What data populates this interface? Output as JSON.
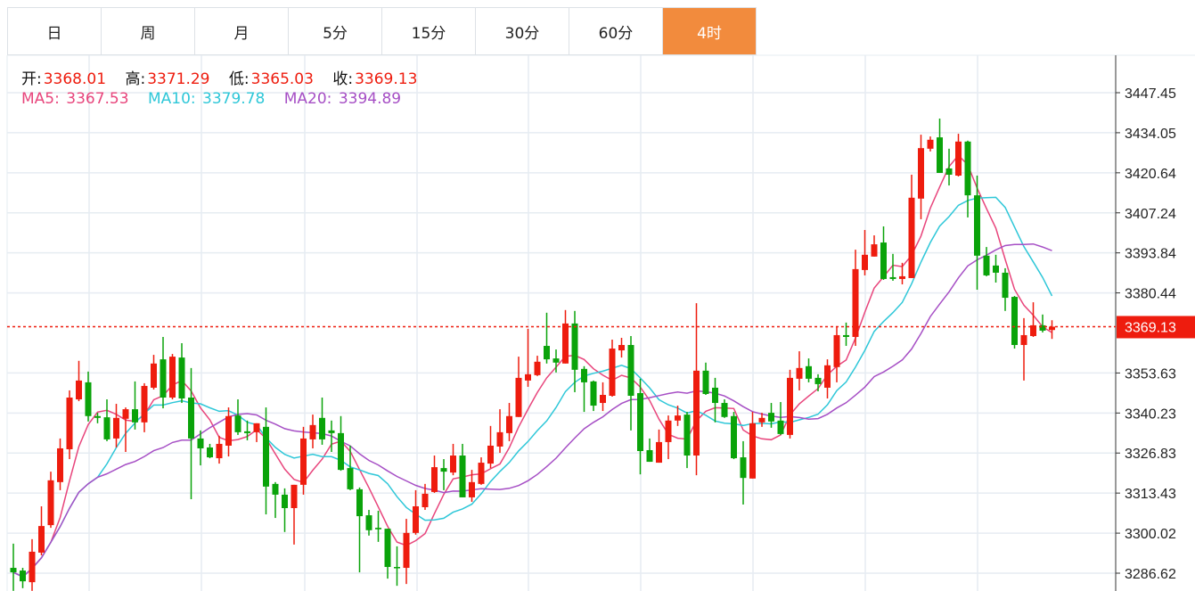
{
  "tabs": [
    {
      "label": "日",
      "active": false
    },
    {
      "label": "周",
      "active": false
    },
    {
      "label": "月",
      "active": false
    },
    {
      "label": "5分",
      "active": false
    },
    {
      "label": "15分",
      "active": false
    },
    {
      "label": "30分",
      "active": false
    },
    {
      "label": "60分",
      "active": false
    },
    {
      "label": "4时",
      "active": true
    }
  ],
  "ohlc_info": {
    "open_label": "开:",
    "open": "3368.01",
    "high_label": "高:",
    "high": "3371.29",
    "low_label": "低:",
    "low": "3365.03",
    "close_label": "收:",
    "close": "3369.13"
  },
  "ma_info": {
    "ma5_label": "MA5:",
    "ma5": "3367.53",
    "ma10_label": "MA10:",
    "ma10": "3379.78",
    "ma20_label": "MA20:",
    "ma20": "3394.89"
  },
  "colors": {
    "up": "#ee1c0e",
    "down": "#0aa30a",
    "ma5": "#e8457c",
    "ma10": "#2ec7d8",
    "ma20": "#a64fc5",
    "active_tab": "#f28b3d",
    "grid": "#e6ecf2"
  },
  "chart_data": {
    "type": "candlestick",
    "ylim": [
      3282.6,
      3478.5
    ],
    "yticks": [
      "3447.45",
      "3434.05",
      "3420.64",
      "3407.24",
      "3393.84",
      "3380.44",
      "3353.63",
      "3340.23",
      "3326.83",
      "3313.43",
      "3300.02",
      "3286.62"
    ],
    "current_price": "3369.13",
    "grid": true,
    "moving_averages": [
      5,
      10,
      20
    ],
    "ohlc": [
      [
        3288.4,
        3296.5,
        3280.7,
        3286.9
      ],
      [
        3287.5,
        3288.4,
        3281.6,
        3283.9
      ],
      [
        3283.6,
        3298.0,
        3280.7,
        3293.8
      ],
      [
        3293.5,
        3309.0,
        3292.6,
        3302.4
      ],
      [
        3302.7,
        3320.6,
        3301.8,
        3317.7
      ],
      [
        3317.1,
        3331.7,
        3314.4,
        3328.4
      ],
      [
        3328.1,
        3347.8,
        3324.8,
        3345.4
      ],
      [
        3344.8,
        3357.7,
        3344.2,
        3351.1
      ],
      [
        3350.5,
        3354.1,
        3337.4,
        3339.2
      ],
      [
        3339.2,
        3340.3,
        3336.8,
        3338.6
      ],
      [
        3338.8,
        3344.8,
        3330.8,
        3331.4
      ],
      [
        3331.7,
        3343.3,
        3328.7,
        3338.6
      ],
      [
        3338.3,
        3342.1,
        3327.2,
        3341.5
      ],
      [
        3341.5,
        3350.8,
        3334.7,
        3337.1
      ],
      [
        3337.1,
        3350.2,
        3333.8,
        3349.3
      ],
      [
        3348.7,
        3359.7,
        3348.1,
        3356.8
      ],
      [
        3358.2,
        3365.7,
        3341.8,
        3345.4
      ],
      [
        3345.4,
        3360.0,
        3344.8,
        3359.1
      ],
      [
        3358.8,
        3363.6,
        3343.6,
        3345.1
      ],
      [
        3345.4,
        3355.3,
        3311.4,
        3331.7
      ],
      [
        3331.7,
        3334.4,
        3322.7,
        3328.4
      ],
      [
        3328.7,
        3329.9,
        3325.1,
        3325.4
      ],
      [
        3325.1,
        3332.6,
        3323.3,
        3329.9
      ],
      [
        3329.3,
        3342.1,
        3325.7,
        3339.2
      ],
      [
        3339.4,
        3344.8,
        3332.9,
        3333.8
      ],
      [
        3334.1,
        3337.7,
        3331.1,
        3333.5
      ],
      [
        3333.8,
        3336.8,
        3330.5,
        3336.8
      ],
      [
        3335.6,
        3342.1,
        3306.3,
        3315.6
      ],
      [
        3316.5,
        3317.1,
        3305.1,
        3312.9
      ],
      [
        3312.9,
        3315.0,
        3300.4,
        3308.4
      ],
      [
        3308.4,
        3316.2,
        3296.2,
        3316.2
      ],
      [
        3316.2,
        3335.6,
        3312.9,
        3331.7
      ],
      [
        3331.4,
        3339.7,
        3328.4,
        3336.2
      ],
      [
        3338.6,
        3345.4,
        3329.6,
        3331.4
      ],
      [
        3334.4,
        3337.7,
        3327.2,
        3333.5
      ],
      [
        3333.5,
        3339.2,
        3320.9,
        3321.2
      ],
      [
        3321.8,
        3329.3,
        3314.4,
        3314.7
      ],
      [
        3314.7,
        3315.3,
        3286.9,
        3305.7
      ],
      [
        3306.0,
        3307.8,
        3299.2,
        3301.0
      ],
      [
        3301.8,
        3307.5,
        3297.1,
        3301.3
      ],
      [
        3301.5,
        3301.5,
        3284.8,
        3288.7
      ],
      [
        3288.7,
        3295.6,
        3282.4,
        3288.4
      ],
      [
        3288.4,
        3304.8,
        3283.0,
        3300.1
      ],
      [
        3300.1,
        3314.4,
        3299.5,
        3309.0
      ],
      [
        3308.7,
        3316.5,
        3307.8,
        3313.2
      ],
      [
        3313.8,
        3326.0,
        3313.5,
        3322.1
      ],
      [
        3321.8,
        3324.8,
        3314.4,
        3320.6
      ],
      [
        3320.3,
        3329.9,
        3319.4,
        3326.0
      ],
      [
        3326.0,
        3329.9,
        3312.0,
        3312.0
      ],
      [
        3312.0,
        3321.2,
        3310.5,
        3317.1
      ],
      [
        3316.5,
        3325.4,
        3316.2,
        3323.6
      ],
      [
        3323.3,
        3335.9,
        3321.8,
        3329.3
      ],
      [
        3329.0,
        3341.5,
        3326.9,
        3333.8
      ],
      [
        3333.5,
        3343.6,
        3330.8,
        3339.2
      ],
      [
        3338.9,
        3359.1,
        3338.9,
        3352.0
      ],
      [
        3351.1,
        3368.4,
        3349.0,
        3353.2
      ],
      [
        3352.9,
        3359.4,
        3352.6,
        3357.4
      ],
      [
        3362.7,
        3373.8,
        3356.8,
        3358.2
      ],
      [
        3358.5,
        3361.5,
        3353.8,
        3357.1
      ],
      [
        3356.8,
        3374.7,
        3356.8,
        3370.2
      ],
      [
        3370.2,
        3374.4,
        3347.2,
        3354.7
      ],
      [
        3355.0,
        3355.9,
        3340.6,
        3350.5
      ],
      [
        3350.8,
        3351.1,
        3340.9,
        3342.7
      ],
      [
        3343.6,
        3350.5,
        3340.9,
        3346.3
      ],
      [
        3346.0,
        3364.8,
        3345.7,
        3361.8
      ],
      [
        3361.2,
        3365.4,
        3358.8,
        3363.0
      ],
      [
        3363.0,
        3366.0,
        3334.4,
        3346.0
      ],
      [
        3346.9,
        3351.7,
        3319.7,
        3327.5
      ],
      [
        3327.8,
        3331.7,
        3323.9,
        3323.9
      ],
      [
        3323.6,
        3334.7,
        3323.6,
        3330.5
      ],
      [
        3330.5,
        3339.4,
        3324.8,
        3337.7
      ],
      [
        3337.7,
        3342.7,
        3335.9,
        3339.4
      ],
      [
        3339.7,
        3340.6,
        3321.8,
        3326.0
      ],
      [
        3326.0,
        3377.0,
        3319.4,
        3354.4
      ],
      [
        3354.4,
        3357.1,
        3346.3,
        3346.6
      ],
      [
        3348.7,
        3352.0,
        3337.1,
        3343.6
      ],
      [
        3343.6,
        3344.8,
        3338.6,
        3338.9
      ],
      [
        3339.2,
        3340.6,
        3324.8,
        3325.1
      ],
      [
        3325.4,
        3330.8,
        3309.6,
        3318.5
      ],
      [
        3318.3,
        3340.6,
        3318.3,
        3336.8
      ],
      [
        3337.1,
        3340.3,
        3335.6,
        3338.6
      ],
      [
        3340.3,
        3343.6,
        3335.3,
        3337.4
      ],
      [
        3337.7,
        3343.9,
        3332.9,
        3333.2
      ],
      [
        3332.9,
        3354.7,
        3331.7,
        3352.0
      ],
      [
        3351.7,
        3360.9,
        3347.8,
        3355.3
      ],
      [
        3355.9,
        3358.5,
        3350.5,
        3351.7
      ],
      [
        3352.0,
        3353.2,
        3347.5,
        3349.9
      ],
      [
        3348.7,
        3358.2,
        3345.1,
        3356.2
      ],
      [
        3355.6,
        3369.3,
        3350.5,
        3366.3
      ],
      [
        3366.3,
        3370.5,
        3362.7,
        3365.7
      ],
      [
        3365.7,
        3394.9,
        3362.7,
        3388.4
      ],
      [
        3388.1,
        3401.5,
        3386.3,
        3393.2
      ],
      [
        3392.6,
        3399.7,
        3392.6,
        3396.7
      ],
      [
        3397.3,
        3402.7,
        3384.8,
        3385.1
      ],
      [
        3385.7,
        3393.5,
        3384.5,
        3385.1
      ],
      [
        3385.1,
        3390.5,
        3383.3,
        3386.0
      ],
      [
        3385.4,
        3420.0,
        3385.4,
        3412.3
      ],
      [
        3412.0,
        3433.4,
        3405.1,
        3428.9
      ],
      [
        3428.7,
        3432.8,
        3427.8,
        3431.7
      ],
      [
        3432.5,
        3438.8,
        3420.6,
        3420.6
      ],
      [
        3422.1,
        3428.7,
        3416.4,
        3420.0
      ],
      [
        3419.7,
        3433.7,
        3419.4,
        3431.1
      ],
      [
        3431.1,
        3431.4,
        3405.7,
        3413.1
      ],
      [
        3413.1,
        3419.7,
        3381.5,
        3392.9
      ],
      [
        3392.9,
        3395.8,
        3386.0,
        3386.3
      ],
      [
        3389.6,
        3393.2,
        3383.9,
        3387.2
      ],
      [
        3387.2,
        3388.7,
        3374.4,
        3378.8
      ],
      [
        3379.1,
        3379.4,
        3361.8,
        3363.0
      ],
      [
        3363.0,
        3372.0,
        3351.1,
        3366.3
      ],
      [
        3366.0,
        3377.3,
        3365.7,
        3369.6
      ],
      [
        3369.6,
        3373.2,
        3367.2,
        3367.8
      ],
      [
        3368.01,
        3371.29,
        3365.03,
        3369.13
      ]
    ]
  }
}
